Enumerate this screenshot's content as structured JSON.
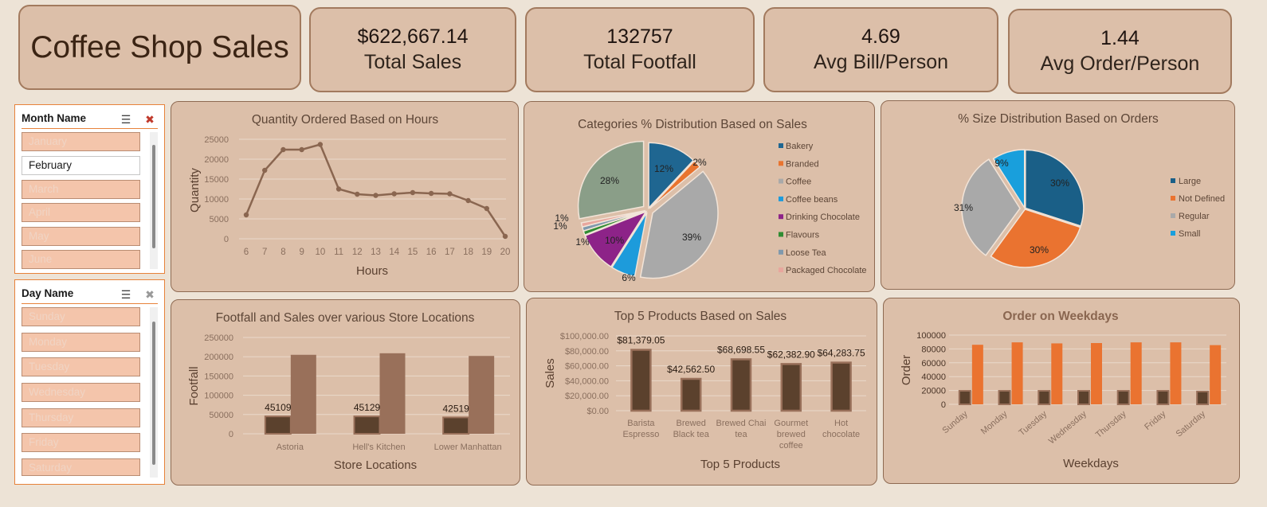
{
  "header": {
    "title": "Coffee Shop Sales",
    "kpis": [
      {
        "value": "$622,667.14",
        "label": "Total Sales"
      },
      {
        "value": "132757",
        "label": "Total Footfall"
      },
      {
        "value": "4.69",
        "label": "Avg Bill/Person"
      },
      {
        "value": "1.44",
        "label": "Avg Order/Person"
      }
    ]
  },
  "slicers": {
    "month": {
      "title": "Month Name",
      "items": [
        "January",
        "February",
        "March",
        "April",
        "May",
        "June"
      ],
      "selected": "February"
    },
    "day": {
      "title": "Day Name",
      "items": [
        "Sunday",
        "Monday",
        "Tuesday",
        "Wednesday",
        "Thursday",
        "Friday",
        "Saturday"
      ],
      "selected": null
    }
  },
  "colors": {
    "line": "#8a6650",
    "bar_dark": "#5b412d",
    "bar_light": "#99705a",
    "orange": "#ea7330",
    "pie_bakery": "#1f6691",
    "pie_branded": "#e9742f",
    "pie_coffee": "#a9a9a9",
    "pie_coffee_beans": "#1d9bdb",
    "pie_drinking_chocolate": "#8d2388",
    "pie_flavours": "#2f8c32",
    "pie_loose_tea": "#7f99ad",
    "pie_packaged_chocolate": "#e8a69d",
    "pie_tea": "#8a9e88",
    "size_large": "#1a5f87",
    "size_not_defined": "#ea7330",
    "size_regular": "#a9a9a9",
    "size_small": "#199fdc"
  },
  "chart_data": [
    {
      "type": "line",
      "title": "Quantity Ordered Based on Hours",
      "xlabel": "Hours",
      "ylabel": "Quantity",
      "x": [
        "6",
        "7",
        "8",
        "9",
        "10",
        "11",
        "12",
        "13",
        "14",
        "15",
        "16",
        "17",
        "18",
        "19",
        "20"
      ],
      "values": [
        6000,
        17200,
        22400,
        22400,
        23700,
        12500,
        11200,
        10900,
        11300,
        11600,
        11400,
        11300,
        9600,
        7600,
        600
      ],
      "yticks": [
        "0",
        "5000",
        "10000",
        "15000",
        "20000",
        "25000"
      ],
      "ylim": [
        0,
        25000
      ],
      "grid": true
    },
    {
      "type": "pie",
      "title": "Categories % Distribution Based on Sales",
      "legend_position": "right",
      "slices": [
        {
          "name": "Bakery",
          "value": 12,
          "label": "12%"
        },
        {
          "name": "Branded",
          "value": 2,
          "label": "2%"
        },
        {
          "name": "Coffee",
          "value": 39,
          "label": "39%"
        },
        {
          "name": "Coffee beans",
          "value": 6,
          "label": "6%"
        },
        {
          "name": "Drinking Chocolate",
          "value": 10,
          "label": "10%"
        },
        {
          "name": "Flavours",
          "value": 1,
          "label": "1%"
        },
        {
          "name": "Loose Tea",
          "value": 1,
          "label": "1%"
        },
        {
          "name": "Packaged Chocolate",
          "value": 1,
          "label": "1%"
        },
        {
          "name": "",
          "value": 28,
          "label": "28%"
        }
      ],
      "legend": [
        "Bakery",
        "Branded",
        "Coffee",
        "Coffee beans",
        "Drinking Chocolate",
        "Flavours",
        "Loose Tea",
        "Packaged Chocolate"
      ]
    },
    {
      "type": "pie",
      "title": "% Size Distribution Based on Orders",
      "legend_position": "right",
      "slices": [
        {
          "name": "Large",
          "value": 30,
          "label": "30%"
        },
        {
          "name": "Not Defined",
          "value": 30,
          "label": "30%"
        },
        {
          "name": "Regular",
          "value": 31,
          "label": "31%"
        },
        {
          "name": "Small",
          "value": 9,
          "label": "9%"
        }
      ]
    },
    {
      "type": "bar",
      "title": "Footfall and Sales over various Store Locations",
      "xlabel": "Store Locations",
      "ylabel": "Footfall",
      "categories": [
        "Astoria",
        "Hell's Kitchen",
        "Lower Manhattan"
      ],
      "series": [
        {
          "values": [
            45109,
            45129,
            42519
          ],
          "labels": [
            "45109",
            "45129",
            "42519"
          ]
        },
        {
          "values": [
            205000,
            209000,
            202000
          ]
        }
      ],
      "yticks": [
        "0",
        "50000",
        "100000",
        "150000",
        "200000",
        "250000"
      ],
      "ylim": [
        0,
        250000
      ],
      "grid": true
    },
    {
      "type": "bar",
      "title": "Top 5 Products Based on Sales",
      "xlabel": "Top 5 Products",
      "ylabel": "Sales",
      "categories": [
        "Barista Espresso",
        "Brewed Black tea",
        "Brewed Chai tea",
        "Gourmet brewed coffee",
        "Hot chocolate"
      ],
      "category_lines": [
        [
          "Barista",
          "Espresso"
        ],
        [
          "Brewed",
          "Black tea"
        ],
        [
          "Brewed Chai",
          "tea"
        ],
        [
          "Gourmet",
          "brewed",
          "coffee"
        ],
        [
          "Hot",
          "chocolate"
        ]
      ],
      "values": [
        81379.05,
        42562.5,
        68698.55,
        62382.9,
        64283.75
      ],
      "labels": [
        "$81,379.05",
        "$42,562.50",
        "$68,698.55",
        "$62,382.90",
        "$64,283.75"
      ],
      "yticks": [
        "$0.00",
        "$20,000.00",
        "$40,000.00",
        "$60,000.00",
        "$80,000.00",
        "$100,000.00"
      ],
      "ylim": [
        0,
        100000
      ],
      "grid": true
    },
    {
      "type": "bar",
      "title": "Order on Weekdays",
      "xlabel": "Weekdays",
      "ylabel": "Order",
      "categories": [
        "Sunday",
        "Monday",
        "Tuesday",
        "Wednesday",
        "Thursday",
        "Friday",
        "Saturday"
      ],
      "series": [
        {
          "values": [
            19500,
            19500,
            19500,
            19500,
            19500,
            19500,
            18500
          ]
        },
        {
          "values": [
            86000,
            89500,
            88000,
            88500,
            89500,
            89500,
            85500
          ]
        }
      ],
      "yticks": [
        "0",
        "20000",
        "40000",
        "60000",
        "80000",
        "100000"
      ],
      "ylim": [
        0,
        100000
      ],
      "grid": true
    }
  ]
}
